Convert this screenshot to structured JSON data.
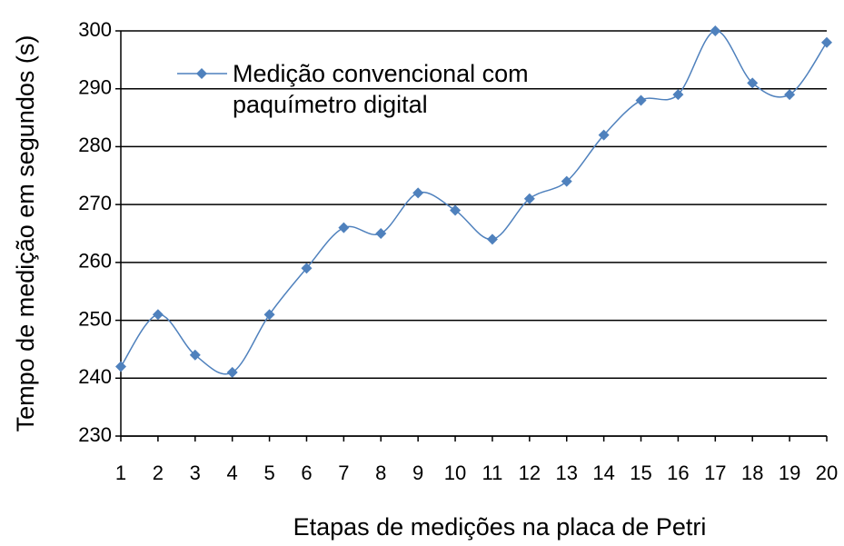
{
  "chart_data": {
    "type": "line",
    "xlabel": "Etapas de medições na placa de Petri",
    "ylabel": "Tempo de medição em segundos (s)",
    "x": [
      1,
      2,
      3,
      4,
      5,
      6,
      7,
      8,
      9,
      10,
      11,
      12,
      13,
      14,
      15,
      16,
      17,
      18,
      19,
      20
    ],
    "series": [
      {
        "name": "Medição convencional com paquímetro digital",
        "color": "#4f81bd",
        "values": [
          242,
          251,
          244,
          241,
          251,
          259,
          266,
          265,
          272,
          269,
          264,
          271,
          274,
          282,
          288,
          289,
          300,
          291,
          289,
          298
        ]
      }
    ],
    "xlim": [
      1,
      20
    ],
    "xticks": [
      1,
      2,
      3,
      4,
      5,
      6,
      7,
      8,
      9,
      10,
      11,
      12,
      13,
      14,
      15,
      16,
      17,
      18,
      19,
      20
    ],
    "ylim": [
      230,
      300
    ],
    "yticks": [
      230,
      240,
      250,
      260,
      270,
      280,
      290,
      300
    ],
    "grid": true,
    "legend": "upper left"
  }
}
